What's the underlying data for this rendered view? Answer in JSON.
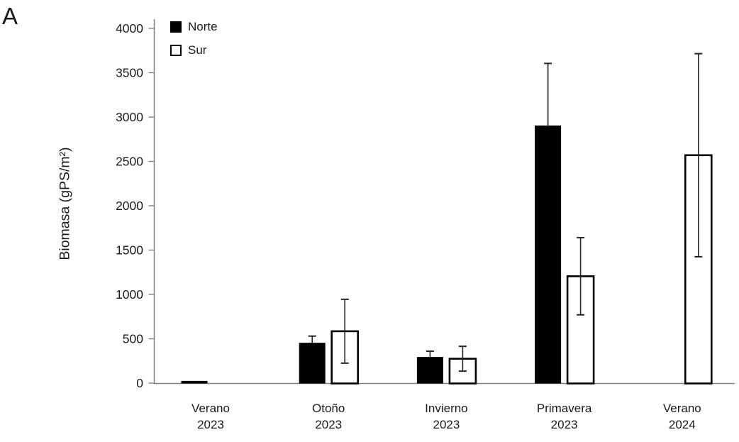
{
  "panel_label": "A",
  "legend": {
    "position": "top-left-inside",
    "items": [
      {
        "label": "Norte",
        "swatch": "filled-black-square"
      },
      {
        "label": "Sur",
        "swatch": "open-white-square"
      }
    ]
  },
  "chart_data": {
    "type": "bar",
    "title": "",
    "xlabel": "",
    "ylabel": "Biomasa (gPS/m²)",
    "ylim": [
      0,
      4000
    ],
    "ytick_step": 500,
    "yticks": [
      0,
      500,
      1000,
      1500,
      2000,
      2500,
      3000,
      3500,
      4000
    ],
    "grid": false,
    "categories": [
      "Verano 2023",
      "Otoño 2023",
      "Invierno 2023",
      "Primavera 2023",
      "Verano 2024"
    ],
    "category_lines": [
      [
        "Verano",
        "2023"
      ],
      [
        "Otoño",
        "2023"
      ],
      [
        "Invierno",
        "2023"
      ],
      [
        "Primavera",
        "2023"
      ],
      [
        "Verano",
        "2024"
      ]
    ],
    "series": [
      {
        "name": "Norte",
        "fill": "#000000",
        "values": [
          25,
          455,
          295,
          2905,
          null
        ],
        "err_up": [
          0,
          75,
          65,
          700,
          null
        ],
        "err_down": [
          0,
          0,
          0,
          0,
          null
        ]
      },
      {
        "name": "Sur",
        "fill": "#ffffff",
        "values": [
          null,
          585,
          275,
          1205,
          2570
        ],
        "err_up": [
          null,
          360,
          140,
          435,
          1145
        ],
        "err_down": [
          null,
          360,
          140,
          435,
          1145
        ]
      }
    ]
  },
  "colors": {
    "bar_norte": "#000000",
    "bar_sur_fill": "#ffffff",
    "bar_border": "#000000",
    "axis": "#808080",
    "error_bar": "#262626",
    "text": "#1a1a1a",
    "background": "#ffffff"
  }
}
